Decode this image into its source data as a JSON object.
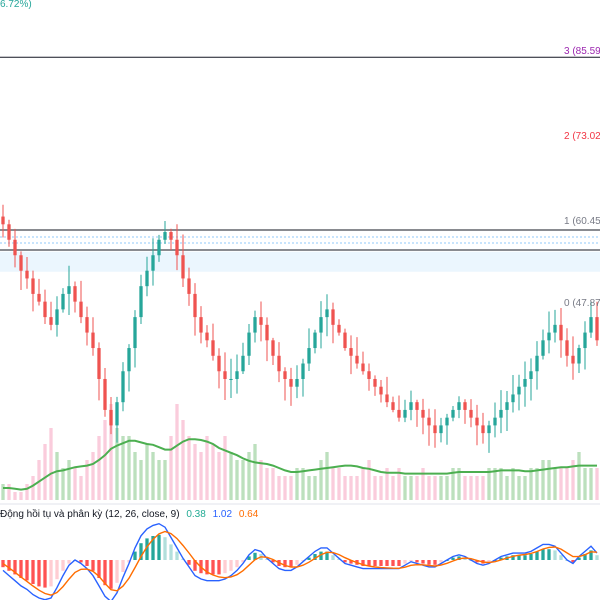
{
  "top_label": "6.72%)",
  "levels": [
    {
      "label": "3 (85.59",
      "value": 85.59,
      "color": "#9c27b0"
    },
    {
      "label": "2 (73.02",
      "value": 73.02,
      "color": "#f23645"
    },
    {
      "label": "1 (60.45",
      "value": 60.45,
      "color": "#787b86"
    },
    {
      "label": "0 (47.87",
      "value": 47.87,
      "color": "#787b86"
    }
  ],
  "macd_legend": {
    "title": "Động hồi tụ và phân kỳ (12, 26, close, 9)",
    "hist": "0.38",
    "macd": "1.02",
    "signal": "0.64"
  },
  "colors": {
    "up": "#26a69a",
    "down": "#ef5350",
    "ma": "#4caf50",
    "macd": "#2962ff",
    "signal": "#ff6d00",
    "level": "#131722",
    "zone": "#e3f2fd"
  },
  "chart_data": {
    "type": "candlestick",
    "price_range": [
      29,
      93
    ],
    "close": [
      64,
      62,
      60,
      58,
      57,
      55,
      54,
      52,
      51,
      53,
      55,
      56,
      54,
      52,
      50,
      48,
      44,
      40,
      38,
      41,
      45,
      48,
      52,
      56,
      58,
      60,
      62,
      63,
      62,
      60,
      57,
      55,
      52,
      50,
      49,
      47,
      45,
      44,
      44,
      45,
      47,
      50,
      52,
      51,
      49,
      47,
      45,
      44,
      43,
      44,
      46,
      48,
      50,
      52,
      53,
      51,
      50,
      48,
      47,
      46,
      45,
      44,
      43,
      42,
      41,
      40,
      39,
      40,
      41,
      40,
      39,
      38,
      37,
      38,
      39,
      40,
      41,
      40,
      39,
      38,
      37,
      38,
      39,
      40,
      41,
      42,
      43,
      44,
      45,
      47,
      49,
      50,
      51,
      49,
      47,
      46,
      48,
      50,
      52,
      49
    ],
    "volume": [
      2,
      2,
      1,
      1,
      2,
      3,
      5,
      7,
      9,
      6,
      4,
      5,
      4,
      3,
      5,
      6,
      8,
      10,
      12,
      9,
      8,
      8,
      6,
      5,
      7,
      6,
      5,
      5,
      8,
      12,
      10,
      8,
      7,
      6,
      8,
      7,
      6,
      8,
      6,
      5,
      5,
      6,
      7,
      5,
      4,
      4,
      3,
      3,
      3,
      4,
      4,
      3,
      3,
      5,
      6,
      4,
      4,
      3,
      3,
      3,
      4,
      5,
      3,
      3,
      4,
      3,
      4,
      3,
      3,
      3,
      4,
      3,
      3,
      3,
      3,
      4,
      4,
      3,
      3,
      3,
      3,
      4,
      4,
      4,
      3,
      4,
      3,
      3,
      4,
      4,
      5,
      5,
      4,
      4,
      4,
      5,
      6,
      4,
      4,
      4
    ],
    "ma_volume": [
      1.5,
      1.5,
      1.4,
      1.3,
      1.4,
      1.8,
      2.3,
      2.8,
      3.3,
      3.6,
      3.7,
      3.9,
      4.1,
      4.2,
      4.3,
      4.5,
      5.0,
      5.6,
      6.4,
      6.8,
      7.1,
      7.4,
      7.4,
      7.2,
      7.0,
      6.9,
      6.6,
      6.3,
      6.3,
      6.8,
      7.3,
      7.6,
      7.6,
      7.5,
      7.3,
      7.0,
      6.5,
      6.2,
      5.9,
      5.6,
      5.2,
      4.9,
      4.7,
      4.6,
      4.5,
      4.3,
      4.0,
      3.7,
      3.5,
      3.5,
      3.6,
      3.7,
      3.8,
      3.9,
      4.0,
      4.1,
      4.2,
      4.3,
      4.3,
      4.2,
      4.0,
      3.9,
      3.7,
      3.5,
      3.4,
      3.4,
      3.4,
      3.3,
      3.3,
      3.3,
      3.3,
      3.3,
      3.3,
      3.3,
      3.3,
      3.4,
      3.5,
      3.5,
      3.5,
      3.5,
      3.5,
      3.5,
      3.6,
      3.7,
      3.7,
      3.7,
      3.7,
      3.6,
      3.6,
      3.7,
      3.8,
      3.9,
      4.0,
      4.1,
      4.1,
      4.2,
      4.3,
      4.3,
      4.3,
      4.3
    ],
    "macd_hist": [
      -0.6,
      -0.9,
      -1.2,
      -1.5,
      -1.7,
      -2.0,
      -2.2,
      -2.3,
      -2.2,
      -1.6,
      -0.9,
      -0.3,
      0.0,
      -0.2,
      -0.5,
      -0.9,
      -1.5,
      -2.1,
      -2.4,
      -1.9,
      -1.0,
      -0.2,
      0.7,
      1.4,
      1.8,
      2.0,
      2.1,
      1.9,
      1.3,
      0.7,
      0.1,
      -0.4,
      -0.9,
      -1.1,
      -1.2,
      -1.2,
      -1.2,
      -1.1,
      -0.9,
      -0.6,
      -0.2,
      0.3,
      0.6,
      0.5,
      0.1,
      -0.2,
      -0.5,
      -0.6,
      -0.6,
      -0.4,
      -0.1,
      0.2,
      0.5,
      0.7,
      0.7,
      0.4,
      0.1,
      -0.2,
      -0.3,
      -0.4,
      -0.5,
      -0.5,
      -0.5,
      -0.5,
      -0.5,
      -0.5,
      -0.5,
      -0.3,
      -0.1,
      -0.2,
      -0.3,
      -0.4,
      -0.4,
      -0.2,
      0.0,
      0.2,
      0.3,
      0.2,
      0.0,
      -0.2,
      -0.3,
      -0.2,
      0.0,
      0.2,
      0.3,
      0.4,
      0.4,
      0.4,
      0.5,
      0.7,
      0.9,
      0.9,
      0.8,
      0.4,
      0.0,
      -0.2,
      0.2,
      0.5,
      0.8,
      0.4
    ]
  }
}
